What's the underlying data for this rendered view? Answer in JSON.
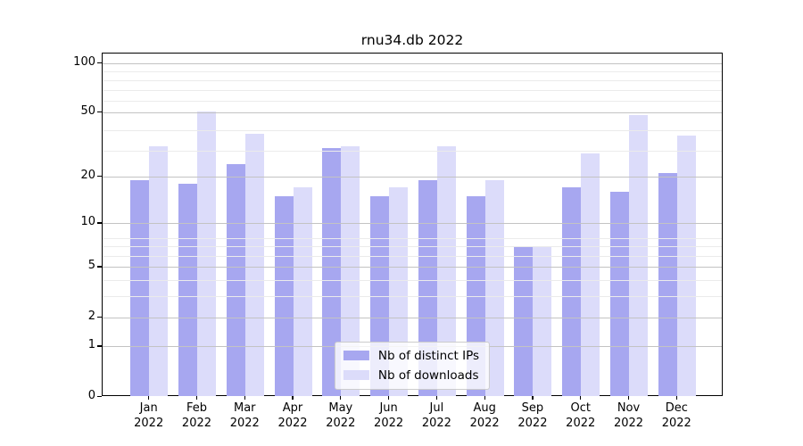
{
  "chart_data": {
    "type": "bar",
    "title": "rnu34.db 2022",
    "categories": [
      "Jan",
      "Feb",
      "Mar",
      "Apr",
      "May",
      "Jun",
      "Jul",
      "Aug",
      "Sep",
      "Oct",
      "Nov",
      "Dec"
    ],
    "category_year": "2022",
    "series": [
      {
        "name": "Nb of distinct IPs",
        "color": "#a7a7f0",
        "values": [
          19,
          18,
          24,
          15,
          30,
          15,
          19,
          15,
          7,
          17,
          16,
          21
        ]
      },
      {
        "name": "Nb of downloads",
        "color": "#dcdcfa",
        "values": [
          31,
          51,
          37,
          17,
          31,
          17,
          31,
          19,
          7,
          28,
          48,
          36
        ]
      }
    ],
    "y_axis": {
      "scale": "log10(1+x)",
      "tick_labels": [
        0,
        1,
        2,
        5,
        10,
        20,
        50,
        100
      ],
      "minor_gridlines_u": [
        4,
        5,
        7,
        8,
        9,
        30,
        40,
        60,
        70,
        80,
        90
      ],
      "range_max": 114
    },
    "xlabel": "",
    "ylabel": "",
    "grid": true,
    "legend_position": "lower center"
  }
}
